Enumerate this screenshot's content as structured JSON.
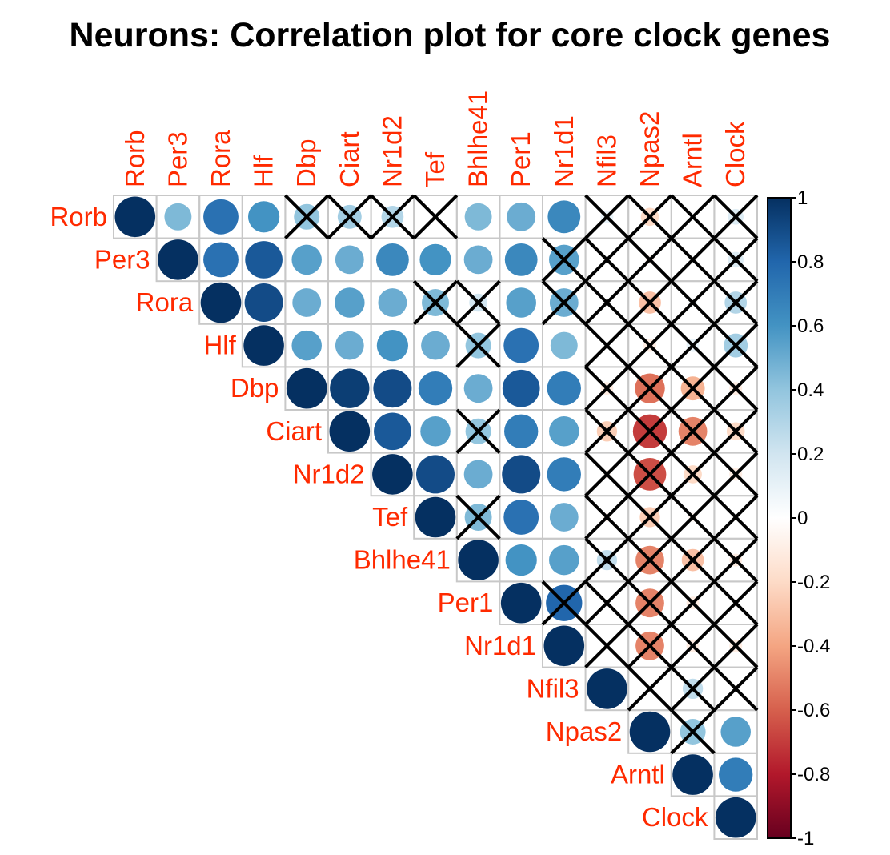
{
  "chart_data": {
    "type": "heatmap",
    "subtype": "correlation-circle-upper",
    "title": "Neurons: Correlation plot for core clock genes",
    "genes": [
      "Rorb",
      "Per3",
      "Rora",
      "Hlf",
      "Dbp",
      "Ciart",
      "Nr1d2",
      "Tef",
      "Bhlhe41",
      "Per1",
      "Nr1d1",
      "Nfil3",
      "Npas2",
      "Arntl",
      "Clock"
    ],
    "label_color": "#ff2a00",
    "matrix": [
      [
        1.0,
        0.45,
        0.75,
        0.6,
        0.4,
        0.35,
        0.3,
        0.0,
        0.45,
        0.5,
        0.65,
        0.1,
        -0.2,
        0.0,
        0.15
      ],
      [
        null,
        1.0,
        0.75,
        0.85,
        0.55,
        0.5,
        0.65,
        0.6,
        0.5,
        0.65,
        0.55,
        0.0,
        -0.05,
        0.0,
        0.15
      ],
      [
        null,
        null,
        1.0,
        0.9,
        0.5,
        0.55,
        0.5,
        0.45,
        0.2,
        0.55,
        0.5,
        0.0,
        -0.3,
        0.05,
        0.3
      ],
      [
        null,
        null,
        null,
        1.0,
        0.55,
        0.5,
        0.6,
        0.5,
        0.4,
        0.75,
        0.45,
        0.0,
        -0.1,
        0.1,
        0.35
      ],
      [
        null,
        null,
        null,
        null,
        1.0,
        0.95,
        0.9,
        0.7,
        0.5,
        0.85,
        0.7,
        -0.1,
        -0.55,
        -0.35,
        -0.1
      ],
      [
        null,
        null,
        null,
        null,
        null,
        1.0,
        0.85,
        0.55,
        0.4,
        0.7,
        0.55,
        -0.25,
        -0.7,
        -0.5,
        -0.2
      ],
      [
        null,
        null,
        null,
        null,
        null,
        null,
        1.0,
        0.9,
        0.5,
        0.9,
        0.7,
        -0.05,
        -0.65,
        -0.2,
        -0.1
      ],
      [
        null,
        null,
        null,
        null,
        null,
        null,
        null,
        1.0,
        0.45,
        0.75,
        0.5,
        -0.05,
        -0.25,
        -0.05,
        0.0
      ],
      [
        null,
        null,
        null,
        null,
        null,
        null,
        null,
        null,
        1.0,
        0.6,
        0.55,
        0.25,
        -0.5,
        -0.3,
        -0.1
      ],
      [
        null,
        null,
        null,
        null,
        null,
        null,
        null,
        null,
        null,
        1.0,
        0.8,
        0.0,
        -0.5,
        -0.1,
        0.0
      ],
      [
        null,
        null,
        null,
        null,
        null,
        null,
        null,
        null,
        null,
        null,
        1.0,
        0.0,
        -0.5,
        -0.1,
        -0.1
      ],
      [
        null,
        null,
        null,
        null,
        null,
        null,
        null,
        null,
        null,
        null,
        null,
        1.0,
        0.0,
        0.25,
        0.0
      ],
      [
        null,
        null,
        null,
        null,
        null,
        null,
        null,
        null,
        null,
        null,
        null,
        null,
        1.0,
        0.4,
        0.55
      ],
      [
        null,
        null,
        null,
        null,
        null,
        null,
        null,
        null,
        null,
        null,
        null,
        null,
        null,
        1.0,
        0.7
      ],
      [
        null,
        null,
        null,
        null,
        null,
        null,
        null,
        null,
        null,
        null,
        null,
        null,
        null,
        null,
        1.0
      ]
    ],
    "insignificant": [
      [
        0,
        4
      ],
      [
        0,
        5
      ],
      [
        0,
        6
      ],
      [
        0,
        7
      ],
      [
        0,
        11
      ],
      [
        0,
        12
      ],
      [
        0,
        13
      ],
      [
        0,
        14
      ],
      [
        1,
        10
      ],
      [
        1,
        11
      ],
      [
        1,
        12
      ],
      [
        1,
        13
      ],
      [
        1,
        14
      ],
      [
        2,
        7
      ],
      [
        2,
        8
      ],
      [
        2,
        10
      ],
      [
        2,
        11
      ],
      [
        2,
        12
      ],
      [
        2,
        13
      ],
      [
        2,
        14
      ],
      [
        3,
        8
      ],
      [
        3,
        11
      ],
      [
        3,
        12
      ],
      [
        3,
        13
      ],
      [
        3,
        14
      ],
      [
        4,
        11
      ],
      [
        4,
        12
      ],
      [
        4,
        13
      ],
      [
        4,
        14
      ],
      [
        5,
        8
      ],
      [
        5,
        11
      ],
      [
        5,
        12
      ],
      [
        5,
        13
      ],
      [
        5,
        14
      ],
      [
        6,
        11
      ],
      [
        6,
        12
      ],
      [
        6,
        13
      ],
      [
        6,
        14
      ],
      [
        7,
        8
      ],
      [
        7,
        11
      ],
      [
        7,
        12
      ],
      [
        7,
        13
      ],
      [
        7,
        14
      ],
      [
        8,
        11
      ],
      [
        8,
        12
      ],
      [
        8,
        13
      ],
      [
        8,
        14
      ],
      [
        9,
        10
      ],
      [
        9,
        11
      ],
      [
        9,
        12
      ],
      [
        9,
        13
      ],
      [
        9,
        14
      ],
      [
        10,
        11
      ],
      [
        10,
        12
      ],
      [
        10,
        13
      ],
      [
        10,
        14
      ],
      [
        11,
        12
      ],
      [
        11,
        13
      ],
      [
        11,
        14
      ],
      [
        12,
        13
      ]
    ],
    "colorbar": {
      "ticks": [
        "1",
        "0.8",
        "0.6",
        "0.4",
        "0.2",
        "0",
        "-0.2",
        "-0.4",
        "-0.6",
        "-0.8",
        "-1"
      ],
      "range": [
        -1,
        1
      ],
      "colors": [
        "#67001f",
        "#b2182b",
        "#d6604d",
        "#f4a582",
        "#fddbc7",
        "#ffffff",
        "#d1e5f0",
        "#92c5de",
        "#4393c3",
        "#2166ac",
        "#053061"
      ]
    }
  }
}
